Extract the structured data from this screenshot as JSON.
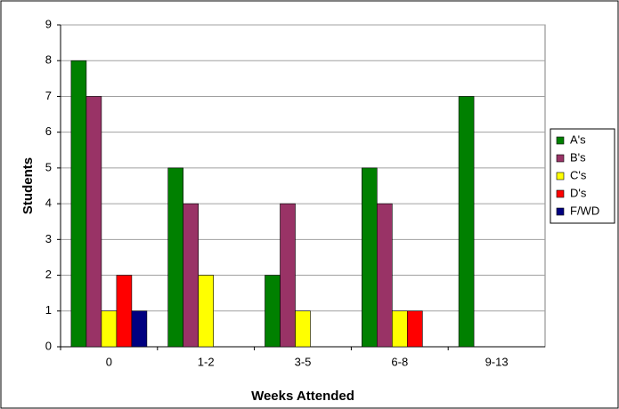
{
  "chart_data": {
    "type": "bar",
    "x_label": "Weeks Attended",
    "y_label": "Students",
    "categories": [
      "0",
      "1-2",
      "3-5",
      "6-8",
      "9-13"
    ],
    "series": [
      {
        "name": "A's",
        "color": "#008000",
        "values": [
          8,
          5,
          2,
          5,
          7
        ]
      },
      {
        "name": "B's",
        "color": "#993366",
        "values": [
          7,
          4,
          4,
          4,
          0
        ]
      },
      {
        "name": "C's",
        "color": "#ffff00",
        "values": [
          1,
          2,
          1,
          1,
          0
        ]
      },
      {
        "name": "D's",
        "color": "#ff0000",
        "values": [
          2,
          0,
          0,
          1,
          0
        ]
      },
      {
        "name": "F/WD",
        "color": "#000080",
        "values": [
          1,
          0,
          0,
          0,
          0
        ]
      }
    ],
    "ylim": [
      0,
      9
    ],
    "yticks": [
      0,
      1,
      2,
      3,
      4,
      5,
      6,
      7,
      8,
      9
    ],
    "grid": true,
    "legend": "right"
  }
}
